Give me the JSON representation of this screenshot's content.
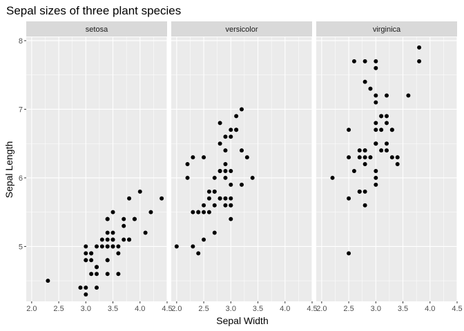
{
  "chart_data": {
    "type": "scatter",
    "title": "Sepal sizes of three plant species",
    "xlabel": "Sepal Width",
    "ylabel": "Sepal Length",
    "xlim": [
      1.9,
      4.5
    ],
    "ylim": [
      4.2,
      8.05
    ],
    "x_ticks": [
      "2.0",
      "2.5",
      "3.0",
      "3.5",
      "4.0",
      "4.5"
    ],
    "x_tick_values": [
      2.0,
      2.5,
      3.0,
      3.5,
      4.0,
      4.5
    ],
    "y_ticks": [
      "5",
      "6",
      "7",
      "8"
    ],
    "y_tick_values": [
      5,
      6,
      7,
      8
    ],
    "grid": true,
    "colors": {
      "panel": "#ebebeb",
      "strip": "#d9d9d9",
      "grid": "#ffffff",
      "point": "#000000",
      "tick": "#333333"
    },
    "facets": [
      {
        "label": "setosa",
        "points": [
          [
            3.5,
            5.1
          ],
          [
            3.0,
            4.9
          ],
          [
            3.2,
            4.7
          ],
          [
            3.1,
            4.6
          ],
          [
            3.6,
            5.0
          ],
          [
            3.9,
            5.4
          ],
          [
            3.4,
            4.6
          ],
          [
            3.4,
            5.0
          ],
          [
            2.9,
            4.4
          ],
          [
            3.1,
            4.9
          ],
          [
            3.7,
            5.4
          ],
          [
            3.4,
            4.8
          ],
          [
            3.0,
            4.8
          ],
          [
            3.0,
            4.3
          ],
          [
            4.0,
            5.8
          ],
          [
            4.4,
            5.7
          ],
          [
            3.9,
            5.4
          ],
          [
            3.5,
            5.1
          ],
          [
            3.8,
            5.7
          ],
          [
            3.8,
            5.1
          ],
          [
            3.4,
            5.4
          ],
          [
            3.7,
            5.1
          ],
          [
            3.6,
            4.6
          ],
          [
            3.3,
            5.1
          ],
          [
            3.4,
            4.8
          ],
          [
            3.0,
            5.0
          ],
          [
            3.4,
            5.0
          ],
          [
            3.5,
            5.2
          ],
          [
            3.4,
            5.2
          ],
          [
            3.2,
            4.7
          ],
          [
            3.1,
            4.8
          ],
          [
            3.4,
            5.4
          ],
          [
            4.1,
            5.2
          ],
          [
            4.2,
            5.5
          ],
          [
            3.1,
            4.9
          ],
          [
            3.2,
            5.0
          ],
          [
            3.5,
            5.5
          ],
          [
            3.6,
            4.9
          ],
          [
            3.0,
            4.4
          ],
          [
            3.4,
            5.1
          ],
          [
            3.5,
            5.0
          ],
          [
            2.3,
            4.5
          ],
          [
            3.2,
            4.4
          ],
          [
            3.5,
            5.0
          ],
          [
            3.8,
            5.1
          ],
          [
            3.0,
            4.8
          ],
          [
            3.8,
            5.1
          ],
          [
            3.2,
            4.6
          ],
          [
            3.7,
            5.3
          ],
          [
            3.3,
            5.0
          ]
        ]
      },
      {
        "label": "versicolor",
        "points": [
          [
            3.2,
            7.0
          ],
          [
            3.2,
            6.4
          ],
          [
            3.1,
            6.9
          ],
          [
            2.3,
            5.5
          ],
          [
            2.8,
            6.5
          ],
          [
            2.8,
            5.7
          ],
          [
            3.3,
            6.3
          ],
          [
            2.4,
            4.9
          ],
          [
            2.9,
            6.6
          ],
          [
            2.7,
            5.2
          ],
          [
            2.0,
            5.0
          ],
          [
            3.0,
            5.9
          ],
          [
            2.2,
            6.0
          ],
          [
            2.9,
            6.1
          ],
          [
            2.9,
            5.6
          ],
          [
            3.1,
            6.7
          ],
          [
            3.0,
            5.6
          ],
          [
            2.7,
            5.8
          ],
          [
            2.2,
            6.2
          ],
          [
            2.5,
            5.6
          ],
          [
            3.2,
            5.9
          ],
          [
            2.8,
            6.1
          ],
          [
            2.5,
            6.3
          ],
          [
            2.8,
            6.1
          ],
          [
            2.9,
            6.4
          ],
          [
            3.0,
            6.6
          ],
          [
            2.8,
            6.8
          ],
          [
            3.0,
            6.7
          ],
          [
            2.9,
            6.0
          ],
          [
            2.6,
            5.7
          ],
          [
            2.4,
            5.5
          ],
          [
            2.4,
            5.5
          ],
          [
            2.7,
            5.8
          ],
          [
            2.7,
            6.0
          ],
          [
            3.0,
            5.4
          ],
          [
            3.4,
            6.0
          ],
          [
            3.1,
            6.7
          ],
          [
            2.3,
            6.3
          ],
          [
            3.0,
            5.6
          ],
          [
            2.5,
            5.5
          ],
          [
            2.6,
            5.5
          ],
          [
            3.0,
            6.1
          ],
          [
            2.6,
            5.8
          ],
          [
            2.3,
            5.0
          ],
          [
            2.7,
            5.6
          ],
          [
            3.0,
            5.7
          ],
          [
            2.9,
            5.7
          ],
          [
            2.9,
            6.2
          ],
          [
            2.5,
            5.1
          ],
          [
            2.8,
            5.7
          ]
        ]
      },
      {
        "label": "virginica",
        "points": [
          [
            3.3,
            6.3
          ],
          [
            2.7,
            5.8
          ],
          [
            3.0,
            7.1
          ],
          [
            2.9,
            6.3
          ],
          [
            3.0,
            6.5
          ],
          [
            3.0,
            7.6
          ],
          [
            2.5,
            4.9
          ],
          [
            2.9,
            7.3
          ],
          [
            2.5,
            6.7
          ],
          [
            3.6,
            7.2
          ],
          [
            3.2,
            6.5
          ],
          [
            2.7,
            6.4
          ],
          [
            3.0,
            6.8
          ],
          [
            2.5,
            5.7
          ],
          [
            2.8,
            5.8
          ],
          [
            3.2,
            6.4
          ],
          [
            3.0,
            6.5
          ],
          [
            3.8,
            7.7
          ],
          [
            2.6,
            7.7
          ],
          [
            2.2,
            6.0
          ],
          [
            3.2,
            6.9
          ],
          [
            2.8,
            5.6
          ],
          [
            2.8,
            7.7
          ],
          [
            2.7,
            6.3
          ],
          [
            3.3,
            6.7
          ],
          [
            3.2,
            7.2
          ],
          [
            2.8,
            6.2
          ],
          [
            3.0,
            6.1
          ],
          [
            2.8,
            6.4
          ],
          [
            3.0,
            7.2
          ],
          [
            2.8,
            7.4
          ],
          [
            3.8,
            7.9
          ],
          [
            2.8,
            6.4
          ],
          [
            2.8,
            6.3
          ],
          [
            2.6,
            6.1
          ],
          [
            3.0,
            7.7
          ],
          [
            3.4,
            6.3
          ],
          [
            3.1,
            6.4
          ],
          [
            3.0,
            6.0
          ],
          [
            3.1,
            6.9
          ],
          [
            3.1,
            6.7
          ],
          [
            3.1,
            6.9
          ],
          [
            2.7,
            5.8
          ],
          [
            3.2,
            6.8
          ],
          [
            3.3,
            6.7
          ],
          [
            3.0,
            6.7
          ],
          [
            2.5,
            6.3
          ],
          [
            3.0,
            6.5
          ],
          [
            3.4,
            6.2
          ],
          [
            3.0,
            5.9
          ]
        ]
      }
    ]
  }
}
